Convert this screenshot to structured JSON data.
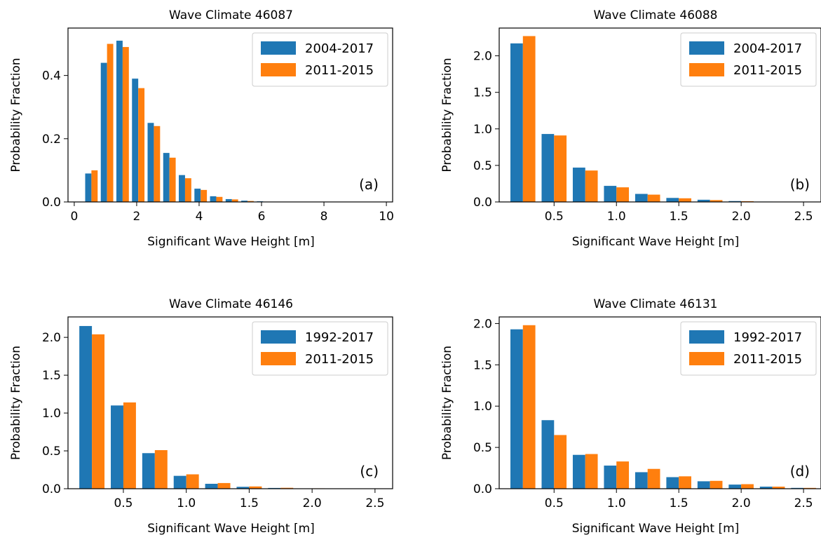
{
  "colors": {
    "series1": "#1f77b4",
    "series2": "#ff7f0e"
  },
  "chart_data": [
    {
      "type": "bar",
      "title": "Wave Climate 46087",
      "panel_label": "(a)",
      "xlabel": "Significant Wave Height [m]",
      "ylabel": "Probability Fraction",
      "xlim": [
        -0.2,
        10.2
      ],
      "ylim": [
        0,
        0.55
      ],
      "xticks": [
        0,
        2,
        4,
        6,
        8,
        10
      ],
      "xtick_labels": [
        "0",
        "2",
        "4",
        "6",
        "8",
        "10"
      ],
      "yticks": [
        0.0,
        0.2,
        0.4
      ],
      "ytick_labels": [
        "0.0",
        "0.2",
        "0.4"
      ],
      "legend": "top-right",
      "grid": false,
      "bin_edges": [
        0.3,
        0.8,
        1.3,
        1.8,
        2.3,
        2.8,
        3.3,
        3.8,
        4.3,
        4.8,
        5.3,
        5.8,
        6.3
      ],
      "series": [
        {
          "name": "2004-2017",
          "values": [
            0.09,
            0.44,
            0.51,
            0.39,
            0.25,
            0.155,
            0.085,
            0.042,
            0.018,
            0.009,
            0.004,
            0.002
          ]
        },
        {
          "name": "2011-2015",
          "values": [
            0.1,
            0.5,
            0.49,
            0.36,
            0.24,
            0.14,
            0.075,
            0.038,
            0.016,
            0.008,
            0.003,
            0.001
          ]
        }
      ]
    },
    {
      "type": "bar",
      "title": "Wave Climate 46088",
      "panel_label": "(b)",
      "xlabel": "Significant Wave Height [m]",
      "ylabel": "Probability Fraction",
      "xlim": [
        0.06,
        2.64
      ],
      "ylim": [
        0,
        2.38
      ],
      "xticks": [
        0.5,
        1.0,
        1.5,
        2.0,
        2.5
      ],
      "xtick_labels": [
        "0.5",
        "1.0",
        "1.5",
        "2.0",
        "2.5"
      ],
      "yticks": [
        0.0,
        0.5,
        1.0,
        1.5,
        2.0
      ],
      "ytick_labels": [
        "0.0",
        "0.5",
        "1.0",
        "1.5",
        "2.0"
      ],
      "legend": "top-right",
      "grid": false,
      "bin_edges": [
        0.125,
        0.375,
        0.625,
        0.875,
        1.125,
        1.375,
        1.625,
        1.875,
        2.125,
        2.375,
        2.625
      ],
      "series": [
        {
          "name": "2004-2017",
          "values": [
            2.17,
            0.93,
            0.47,
            0.22,
            0.11,
            0.055,
            0.03,
            0.012,
            0.005,
            0.002
          ]
        },
        {
          "name": "2011-2015",
          "values": [
            2.27,
            0.91,
            0.43,
            0.2,
            0.1,
            0.05,
            0.025,
            0.01,
            0.004,
            0.002
          ]
        }
      ]
    },
    {
      "type": "bar",
      "title": "Wave Climate 46146",
      "panel_label": "(c)",
      "xlabel": "Significant Wave Height [m]",
      "ylabel": "Probability Fraction",
      "xlim": [
        0.06,
        2.64
      ],
      "ylim": [
        0,
        2.27
      ],
      "xticks": [
        0.5,
        1.0,
        1.5,
        2.0,
        2.5
      ],
      "xtick_labels": [
        "0.5",
        "1.0",
        "1.5",
        "2.0",
        "2.5"
      ],
      "yticks": [
        0.0,
        0.5,
        1.0,
        1.5,
        2.0
      ],
      "ytick_labels": [
        "0.0",
        "0.5",
        "1.0",
        "1.5",
        "2.0"
      ],
      "legend": "top-right",
      "grid": false,
      "bin_edges": [
        0.125,
        0.375,
        0.625,
        0.875,
        1.125,
        1.375,
        1.625,
        1.875,
        2.125,
        2.375,
        2.625
      ],
      "series": [
        {
          "name": "1992-2017",
          "values": [
            2.15,
            1.1,
            0.47,
            0.17,
            0.065,
            0.025,
            0.01,
            0.004,
            0.002,
            0.001
          ]
        },
        {
          "name": "2011-2015",
          "values": [
            2.04,
            1.14,
            0.51,
            0.19,
            0.075,
            0.03,
            0.012,
            0.005,
            0.002,
            0.001
          ]
        }
      ]
    },
    {
      "type": "bar",
      "title": "Wave Climate 46131",
      "panel_label": "(d)",
      "xlabel": "Significant Wave Height [m]",
      "ylabel": "Probability Fraction",
      "xlim": [
        0.06,
        2.64
      ],
      "ylim": [
        0,
        2.08
      ],
      "xticks": [
        0.5,
        1.0,
        1.5,
        2.0,
        2.5
      ],
      "xtick_labels": [
        "0.5",
        "1.0",
        "1.5",
        "2.0",
        "2.5"
      ],
      "yticks": [
        0.0,
        0.5,
        1.0,
        1.5,
        2.0
      ],
      "ytick_labels": [
        "0.0",
        "0.5",
        "1.0",
        "1.5",
        "2.0"
      ],
      "legend": "top-right",
      "grid": false,
      "bin_edges": [
        0.125,
        0.375,
        0.625,
        0.875,
        1.125,
        1.375,
        1.625,
        1.875,
        2.125,
        2.375,
        2.625
      ],
      "series": [
        {
          "name": "1992-2017",
          "values": [
            1.93,
            0.83,
            0.41,
            0.28,
            0.2,
            0.14,
            0.09,
            0.05,
            0.025,
            0.01
          ]
        },
        {
          "name": "2011-2015",
          "values": [
            1.98,
            0.65,
            0.42,
            0.33,
            0.24,
            0.15,
            0.095,
            0.055,
            0.025,
            0.01
          ]
        }
      ]
    }
  ]
}
